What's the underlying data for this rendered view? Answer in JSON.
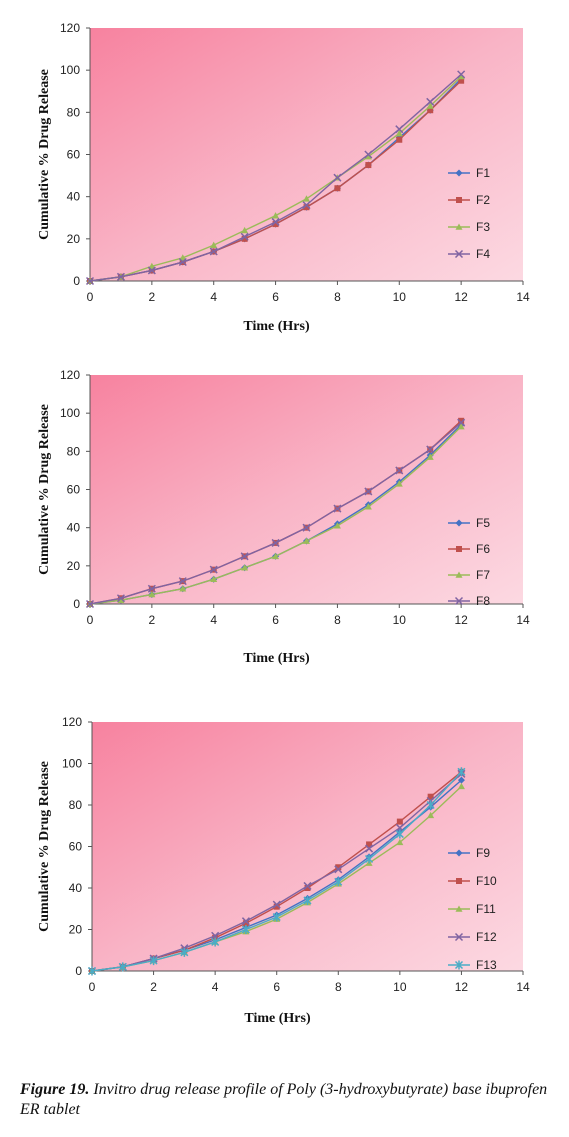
{
  "chart_data": [
    {
      "type": "line",
      "xlabel": "Time (Hrs)",
      "ylabel": "Cumulative % Drug Release",
      "xlim": [
        0,
        14
      ],
      "ylim": [
        0,
        120
      ],
      "xticks": [
        0,
        2,
        4,
        6,
        8,
        10,
        12,
        14
      ],
      "yticks": [
        0,
        20,
        40,
        60,
        80,
        100,
        120
      ],
      "legend_position": "right",
      "x": [
        0,
        1,
        2,
        3,
        4,
        5,
        6,
        7,
        8,
        9,
        10,
        11,
        12
      ],
      "series": [
        {
          "name": "F1",
          "color": "#4472c4",
          "marker": "diamond",
          "values": [
            0,
            2,
            5,
            9,
            14,
            20,
            27,
            35,
            44,
            55,
            68,
            81,
            96
          ]
        },
        {
          "name": "F2",
          "color": "#c0504d",
          "marker": "square",
          "values": [
            0,
            2,
            5,
            9,
            14,
            20,
            27,
            35,
            44,
            55,
            67,
            81,
            95
          ]
        },
        {
          "name": "F3",
          "color": "#9bbb59",
          "marker": "triangle",
          "values": [
            0,
            2,
            7,
            11,
            17,
            24,
            31,
            39,
            49,
            59,
            70,
            83,
            97
          ]
        },
        {
          "name": "F4",
          "color": "#8064a2",
          "marker": "x",
          "values": [
            0,
            2,
            5,
            9,
            14,
            21,
            28,
            36,
            49,
            60,
            72,
            85,
            98
          ]
        }
      ]
    },
    {
      "type": "line",
      "xlabel": "Time (Hrs)",
      "ylabel": "Cumulative % Drug Release",
      "xlim": [
        0,
        14
      ],
      "ylim": [
        0,
        120
      ],
      "xticks": [
        0,
        2,
        4,
        6,
        8,
        10,
        12,
        14
      ],
      "yticks": [
        0,
        20,
        40,
        60,
        80,
        100,
        120
      ],
      "legend_position": "right",
      "x": [
        0,
        1,
        2,
        3,
        4,
        5,
        6,
        7,
        8,
        9,
        10,
        11,
        12
      ],
      "series": [
        {
          "name": "F5",
          "color": "#4472c4",
          "marker": "diamond",
          "values": [
            0,
            2,
            5,
            8,
            13,
            19,
            25,
            33,
            42,
            52,
            64,
            78,
            94
          ]
        },
        {
          "name": "F6",
          "color": "#c0504d",
          "marker": "square",
          "values": [
            0,
            3,
            8,
            12,
            18,
            25,
            32,
            40,
            50,
            59,
            70,
            81,
            96
          ]
        },
        {
          "name": "F7",
          "color": "#9bbb59",
          "marker": "triangle",
          "values": [
            0,
            2,
            5,
            8,
            13,
            19,
            25,
            33,
            41,
            51,
            63,
            77,
            93
          ]
        },
        {
          "name": "F8",
          "color": "#8064a2",
          "marker": "x",
          "values": [
            0,
            3,
            8,
            12,
            18,
            25,
            32,
            40,
            50,
            59,
            70,
            81,
            95
          ]
        }
      ]
    },
    {
      "type": "line",
      "xlabel": "Time (Hrs)",
      "ylabel": "Cumulative % Drug Release",
      "xlim": [
        0,
        14
      ],
      "ylim": [
        0,
        120
      ],
      "xticks": [
        0,
        2,
        4,
        6,
        8,
        10,
        12,
        14
      ],
      "yticks": [
        0,
        20,
        40,
        60,
        80,
        100,
        120
      ],
      "legend_position": "right",
      "x": [
        0,
        1,
        2,
        3,
        4,
        5,
        6,
        7,
        8,
        9,
        10,
        11,
        12
      ],
      "series": [
        {
          "name": "F9",
          "color": "#4472c4",
          "marker": "diamond",
          "values": [
            0,
            2,
            6,
            10,
            15,
            21,
            27,
            35,
            44,
            55,
            67,
            79,
            92
          ]
        },
        {
          "name": "F10",
          "color": "#c0504d",
          "marker": "square",
          "values": [
            0,
            2,
            6,
            10,
            16,
            23,
            31,
            40,
            50,
            61,
            72,
            84,
            96
          ]
        },
        {
          "name": "F11",
          "color": "#9bbb59",
          "marker": "triangle",
          "values": [
            0,
            2,
            5,
            9,
            14,
            19,
            25,
            33,
            42,
            52,
            62,
            75,
            89
          ]
        },
        {
          "name": "F12",
          "color": "#8064a2",
          "marker": "x",
          "values": [
            0,
            2,
            6,
            11,
            17,
            24,
            32,
            41,
            49,
            59,
            69,
            82,
            95
          ]
        },
        {
          "name": "F13",
          "color": "#4bacc6",
          "marker": "star",
          "values": [
            0,
            2,
            5,
            9,
            14,
            20,
            26,
            34,
            43,
            54,
            66,
            80,
            96
          ]
        }
      ]
    }
  ],
  "caption": {
    "label": "Figure 19.",
    "text": " Invitro drug release profile of Poly (3-hydroxybutyrate) base ibuprofen ER tablet"
  }
}
